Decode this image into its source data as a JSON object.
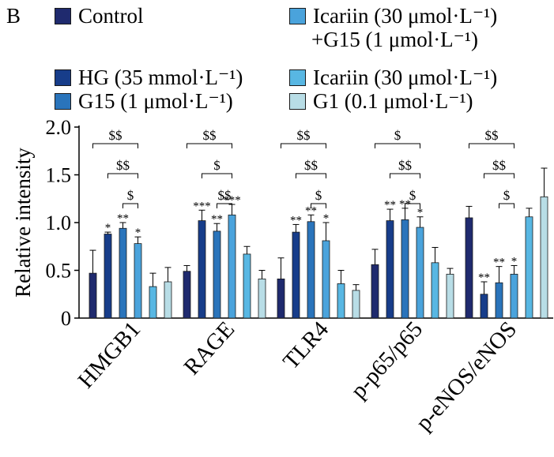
{
  "panel_label": "B",
  "chart_data": {
    "type": "bar",
    "categories": [
      "HMGB1",
      "RAGE",
      "TLR4",
      "p-p65/p65",
      "p-eNOS/eNOS"
    ],
    "ylabel": "Relative intensity",
    "xlabel": "",
    "ylim": [
      0,
      2.0
    ],
    "yticks": [
      "0",
      "0.5",
      "1.0",
      "1.5",
      "2.0"
    ],
    "grid": false,
    "legend_position": "top",
    "series": [
      {
        "name": "Control",
        "color": "#1f2a6e",
        "values": [
          0.47,
          0.49,
          0.41,
          0.56,
          1.05
        ],
        "errors": [
          0.24,
          0.06,
          0.22,
          0.16,
          0.12
        ]
      },
      {
        "name": "HG (35 mmol·L⁻¹)",
        "color": "#173d8a",
        "values": [
          0.88,
          1.02,
          0.9,
          1.02,
          0.25
        ],
        "errors": [
          0.02,
          0.11,
          0.08,
          0.12,
          0.13
        ]
      },
      {
        "name": "G15 (1 μmol·L⁻¹)",
        "color": "#2a74bb",
        "values": [
          0.94,
          0.91,
          1.01,
          1.03,
          0.37
        ],
        "errors": [
          0.06,
          0.08,
          0.07,
          0.12,
          0.17
        ]
      },
      {
        "name": "Icariin (30 μmol·L⁻¹) +G15 (1 μmol·L⁻¹)",
        "color": "#4aa3dc",
        "values": [
          0.78,
          1.08,
          0.81,
          0.95,
          0.46
        ],
        "errors": [
          0.07,
          0.11,
          0.19,
          0.11,
          0.09
        ]
      },
      {
        "name": "Icariin (30 μmol·L⁻¹)",
        "color": "#58b7e3",
        "values": [
          0.33,
          0.67,
          0.36,
          0.58,
          1.06
        ],
        "errors": [
          0.14,
          0.08,
          0.14,
          0.16,
          0.09
        ]
      },
      {
        "name": "G1 (0.1 μmol·L⁻¹)",
        "color": "#b8dde6",
        "values": [
          0.38,
          0.41,
          0.29,
          0.46,
          1.27
        ],
        "errors": [
          0.15,
          0.09,
          0.06,
          0.06,
          0.3
        ]
      }
    ],
    "annotations": [
      {
        "category": 0,
        "series": 1,
        "text": "*"
      },
      {
        "category": 0,
        "series": 2,
        "text": "**"
      },
      {
        "category": 0,
        "series": 3,
        "text": "*"
      },
      {
        "category": 1,
        "series": 1,
        "text": "***"
      },
      {
        "category": 1,
        "series": 2,
        "text": "**"
      },
      {
        "category": 1,
        "series": 3,
        "text": "***"
      },
      {
        "category": 2,
        "series": 1,
        "text": "**"
      },
      {
        "category": 2,
        "series": 2,
        "text": "**"
      },
      {
        "category": 2,
        "series": 3,
        "text": "*"
      },
      {
        "category": 3,
        "series": 1,
        "text": "**"
      },
      {
        "category": 3,
        "series": 2,
        "text": "**"
      },
      {
        "category": 3,
        "series": 3,
        "text": "*"
      },
      {
        "category": 4,
        "series": 1,
        "text": "**"
      },
      {
        "category": 4,
        "series": 2,
        "text": "**"
      },
      {
        "category": 4,
        "series": 3,
        "text": "*"
      }
    ],
    "brackets": [
      {
        "category": 0,
        "from": 0,
        "to": 3,
        "text": "$$"
      },
      {
        "category": 0,
        "from": 1,
        "to": 3,
        "text": "$$"
      },
      {
        "category": 0,
        "from": 2,
        "to": 3,
        "text": "$"
      },
      {
        "category": 1,
        "from": 0,
        "to": 3,
        "text": "$$"
      },
      {
        "category": 1,
        "from": 1,
        "to": 3,
        "text": "$"
      },
      {
        "category": 1,
        "from": 2,
        "to": 3,
        "text": "$$"
      },
      {
        "category": 2,
        "from": 0,
        "to": 3,
        "text": "$$"
      },
      {
        "category": 2,
        "from": 1,
        "to": 3,
        "text": "$$"
      },
      {
        "category": 2,
        "from": 2,
        "to": 3,
        "text": "$"
      },
      {
        "category": 3,
        "from": 0,
        "to": 3,
        "text": "$"
      },
      {
        "category": 3,
        "from": 1,
        "to": 3,
        "text": "$$"
      },
      {
        "category": 3,
        "from": 2,
        "to": 3,
        "text": "$"
      },
      {
        "category": 4,
        "from": 0,
        "to": 3,
        "text": "$$"
      },
      {
        "category": 4,
        "from": 1,
        "to": 3,
        "text": "$$"
      },
      {
        "category": 4,
        "from": 2,
        "to": 3,
        "text": "$"
      }
    ]
  }
}
